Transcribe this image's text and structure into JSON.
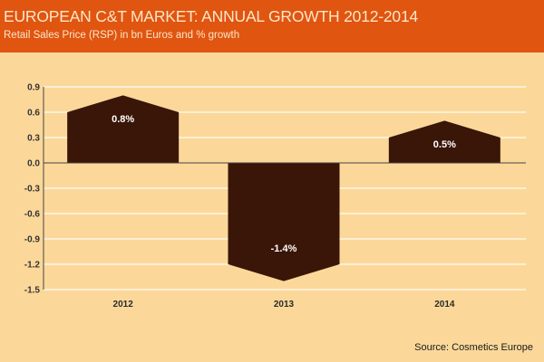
{
  "header": {
    "title": "EUROPEAN C&T MARKET: ANNUAL GROWTH 2012-2014",
    "subtitle": "Retail Sales Price (RSP) in bn Euros and % growth"
  },
  "source": "Source: Cosmetics Europe",
  "colors": {
    "header": "#E05510",
    "background": "#FBD89A",
    "bar": "#3A1608",
    "gridline": "#FFF6E6",
    "axis": "#444444"
  },
  "chart_data": {
    "type": "bar",
    "title": "EUROPEAN C&T MARKET: ANNUAL GROWTH 2012-2014",
    "subtitle": "Retail Sales Price (RSP) in bn Euros and % growth",
    "xlabel": "",
    "ylabel": "",
    "categories": [
      "2012",
      "2013",
      "2014"
    ],
    "values": [
      0.8,
      -1.4,
      0.5
    ],
    "shoulder_values": [
      0.6,
      -1.2,
      0.3
    ],
    "data_labels": [
      "0.8%",
      "-1.4%",
      "0.5%"
    ],
    "ylim": [
      -1.5,
      0.9
    ],
    "yticks": [
      0.9,
      0.6,
      0.3,
      0.0,
      -0.3,
      -0.6,
      -0.9,
      -1.2,
      -1.5
    ],
    "ytick_labels": [
      "0.9",
      "0.6",
      "0.3",
      "0.0",
      "-0.3",
      "-0.6",
      "-0.9",
      "-1.2",
      "-1.5"
    ],
    "grid": true,
    "legend": "none",
    "bar_shape": "pointed"
  }
}
